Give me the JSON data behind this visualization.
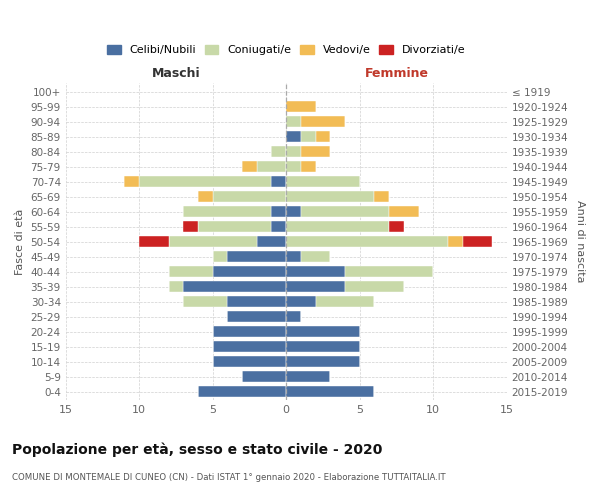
{
  "age_groups": [
    "100+",
    "95-99",
    "90-94",
    "85-89",
    "80-84",
    "75-79",
    "70-74",
    "65-69",
    "60-64",
    "55-59",
    "50-54",
    "45-49",
    "40-44",
    "35-39",
    "30-34",
    "25-29",
    "20-24",
    "15-19",
    "10-14",
    "5-9",
    "0-4"
  ],
  "birth_years": [
    "≤ 1919",
    "1920-1924",
    "1925-1929",
    "1930-1934",
    "1935-1939",
    "1940-1944",
    "1945-1949",
    "1950-1954",
    "1955-1959",
    "1960-1964",
    "1965-1969",
    "1970-1974",
    "1975-1979",
    "1980-1984",
    "1985-1989",
    "1990-1994",
    "1995-1999",
    "2000-2004",
    "2005-2009",
    "2010-2014",
    "2015-2019"
  ],
  "maschi": {
    "celibi": [
      0,
      0,
      0,
      0,
      0,
      0,
      1,
      0,
      1,
      1,
      2,
      4,
      5,
      7,
      4,
      4,
      5,
      5,
      5,
      3,
      6
    ],
    "coniugati": [
      0,
      0,
      0,
      0,
      1,
      2,
      9,
      5,
      6,
      5,
      6,
      1,
      3,
      1,
      3,
      0,
      0,
      0,
      0,
      0,
      0
    ],
    "vedovi": [
      0,
      0,
      0,
      0,
      0,
      1,
      1,
      1,
      0,
      0,
      0,
      0,
      0,
      0,
      0,
      0,
      0,
      0,
      0,
      0,
      0
    ],
    "divorziati": [
      0,
      0,
      0,
      0,
      0,
      0,
      0,
      0,
      0,
      1,
      2,
      0,
      0,
      0,
      0,
      0,
      0,
      0,
      0,
      0,
      0
    ]
  },
  "femmine": {
    "nubili": [
      0,
      0,
      0,
      1,
      0,
      0,
      0,
      0,
      1,
      0,
      0,
      1,
      4,
      4,
      2,
      1,
      5,
      5,
      5,
      3,
      6
    ],
    "coniugate": [
      0,
      0,
      1,
      1,
      1,
      1,
      5,
      6,
      6,
      7,
      11,
      2,
      6,
      4,
      4,
      0,
      0,
      0,
      0,
      0,
      0
    ],
    "vedove": [
      0,
      2,
      3,
      1,
      2,
      1,
      0,
      1,
      2,
      0,
      1,
      0,
      0,
      0,
      0,
      0,
      0,
      0,
      0,
      0,
      0
    ],
    "divorziate": [
      0,
      0,
      0,
      0,
      0,
      0,
      0,
      0,
      0,
      1,
      2,
      0,
      0,
      0,
      0,
      0,
      0,
      0,
      0,
      0,
      0
    ]
  },
  "colors": {
    "celibi_nubili": "#4a6fa1",
    "coniugati": "#c8d9a8",
    "vedovi": "#f2bc55",
    "divorziati": "#cc2222"
  },
  "title": "Popolazione per età, sesso e stato civile - 2020",
  "subtitle": "COMUNE DI MONTEMALE DI CUNEO (CN) - Dati ISTAT 1° gennaio 2020 - Elaborazione TUTTAITALIA.IT",
  "xlabel_left": "Maschi",
  "xlabel_right": "Femmine",
  "ylabel_left": "Fasce di età",
  "ylabel_right": "Anni di nascita",
  "xlim": 15,
  "legend_labels": [
    "Celibi/Nubili",
    "Coniugati/e",
    "Vedovi/e",
    "Divorziati/e"
  ],
  "background_color": "#ffffff",
  "grid_color": "#cccccc"
}
